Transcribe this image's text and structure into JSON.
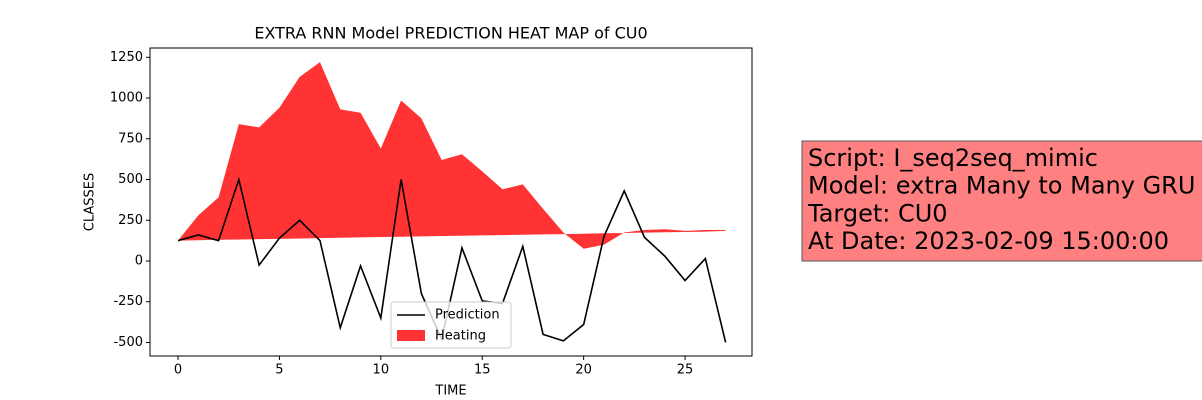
{
  "chart_data": {
    "type": "line",
    "title": "EXTRA RNN Model PREDICTION HEAT MAP of CU0",
    "x_label": "TIME",
    "y_label": "CLASSES",
    "x": [
      0,
      1,
      2,
      3,
      4,
      5,
      6,
      7,
      8,
      9,
      10,
      11,
      12,
      13,
      14,
      15,
      16,
      17,
      18,
      19,
      20,
      21,
      22,
      23,
      24,
      25,
      26,
      27
    ],
    "series": [
      {
        "name": "Prediction",
        "type": "line",
        "color": "#000000",
        "values": [
          125,
          160,
          125,
          500,
          -25,
          140,
          250,
          125,
          -410,
          -30,
          -350,
          500,
          -200,
          -480,
          80,
          -245,
          -260,
          90,
          -450,
          -490,
          -390,
          150,
          430,
          145,
          30,
          -120,
          15,
          -500
        ]
      },
      {
        "name": "Heating",
        "type": "fill_between",
        "color": "#ff0000",
        "alpha": 0.8,
        "values": [
          125,
          280,
          390,
          840,
          820,
          940,
          1130,
          1220,
          930,
          910,
          690,
          985,
          875,
          620,
          655,
          550,
          440,
          470,
          320,
          175,
          75,
          100,
          175,
          190,
          195,
          185,
          190,
          190
        ],
        "lower": [
          125,
          127,
          130,
          132,
          134,
          136,
          138,
          140,
          143,
          145,
          147,
          149,
          151,
          153,
          155,
          157,
          159,
          161,
          163,
          165,
          167,
          170,
          172,
          174,
          176,
          178,
          180,
          185
        ]
      }
    ],
    "xlim": [
      -1.38,
      28.3
    ],
    "xticks": [
      0,
      5,
      10,
      15,
      20,
      25
    ],
    "ylim": [
      -583,
      1307
    ],
    "yticks": [
      -500,
      -250,
      0,
      250,
      500,
      750,
      1000,
      1250
    ],
    "legend": "lower center",
    "annotation": [
      "Script: I_seq2seq_mimic",
      "Model: extra Many to Many GRU",
      "Target: CU0",
      "At Date: 2023-02-09 15:00:00"
    ]
  }
}
